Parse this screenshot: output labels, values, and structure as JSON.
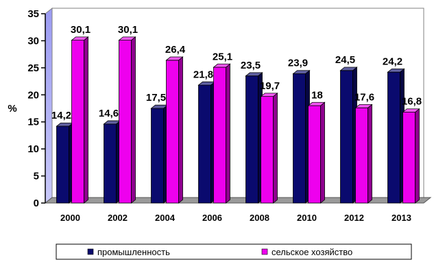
{
  "chart_data": {
    "type": "bar",
    "categories": [
      "2000",
      "2002",
      "2004",
      "2006",
      "2008",
      "2010",
      "2012",
      "2013"
    ],
    "series": [
      {
        "name": "промышленность",
        "values": [
          14.2,
          14.6,
          17.5,
          21.8,
          23.5,
          23.9,
          24.5,
          24.2
        ],
        "labels": [
          "14,2",
          "14,6",
          "17,5",
          "21,8",
          "23,5",
          "23,9",
          "24,5",
          "24,2"
        ],
        "color": "#0a0a6e"
      },
      {
        "name": "сельское хозяйство",
        "values": [
          30.1,
          30.1,
          26.4,
          25.1,
          19.7,
          18,
          17.6,
          16.8
        ],
        "labels": [
          "30,1",
          "30,1",
          "26,4",
          "25,1",
          "19,7",
          "18",
          "17,6",
          "16,8"
        ],
        "color": "#ee00ee"
      }
    ],
    "ylabel": "%",
    "xlabel": "",
    "ylim": [
      0,
      35
    ],
    "yticks": [
      "0",
      "5",
      "10",
      "15",
      "20",
      "25",
      "30",
      "35"
    ],
    "grid": false,
    "legend": "bottom",
    "style": "3d-column"
  }
}
